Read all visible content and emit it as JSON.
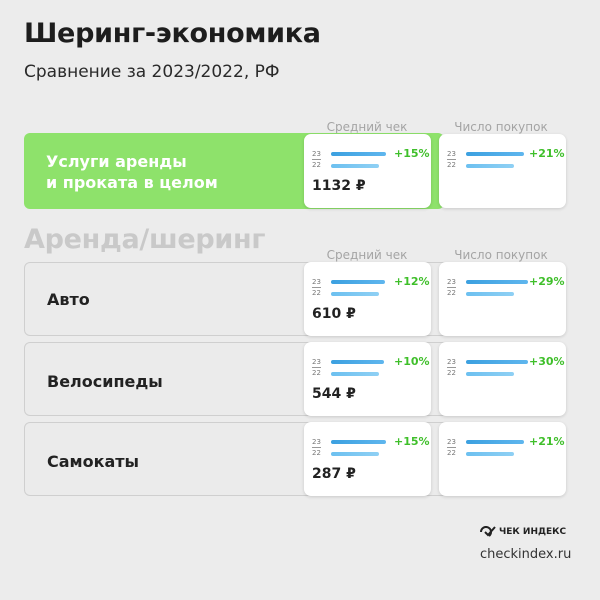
{
  "title": "Шеринг-экономика",
  "subtitle": "Сравнение за 2023/2022, РФ",
  "section_title": "Аренда/шеринг",
  "column_headers": {
    "avg_check": "Средний чек",
    "purchases": "Число покупок"
  },
  "year_labels": {
    "current": "23",
    "previous": "22"
  },
  "colors": {
    "highlight": "#8ee26b",
    "bar": "#3ba0e0",
    "growth": "#3fbf2a"
  },
  "chart_data": {
    "type": "bar",
    "categories": [
      "Услуги аренды и проката в целом",
      "Авто",
      "Велосипеды",
      "Самокаты"
    ],
    "series": [
      {
        "name": "Средний чек",
        "change_pct": [
          "+15%",
          "+12%",
          "+10%",
          "+15%"
        ],
        "values_2023": [
          "1132 ₽",
          "610 ₽",
          "544 ₽",
          "287 ₽"
        ]
      },
      {
        "name": "Число покупок",
        "change_pct": [
          "+21%",
          "+29%",
          "+30%",
          "+21%"
        ]
      }
    ]
  },
  "rows": [
    {
      "label": "Услуги аренды\nи проката в целом",
      "avg_pct": "+15%",
      "avg_growth": 0.15,
      "avg_value": "1132 ₽",
      "cnt_pct": "+21%",
      "cnt_growth": 0.21
    },
    {
      "label": "Авто",
      "avg_pct": "+12%",
      "avg_growth": 0.12,
      "avg_value": "610 ₽",
      "cnt_pct": "+29%",
      "cnt_growth": 0.29
    },
    {
      "label": "Велосипеды",
      "avg_pct": "+10%",
      "avg_growth": 0.1,
      "avg_value": "544 ₽",
      "cnt_pct": "+30%",
      "cnt_growth": 0.3
    },
    {
      "label": "Самокаты",
      "avg_pct": "+15%",
      "avg_growth": 0.15,
      "avg_value": "287 ₽",
      "cnt_pct": "+21%",
      "cnt_growth": 0.21
    }
  ],
  "footer": {
    "brand": "ЧЕК ИНДЕКС",
    "site": "checkindex.ru"
  }
}
